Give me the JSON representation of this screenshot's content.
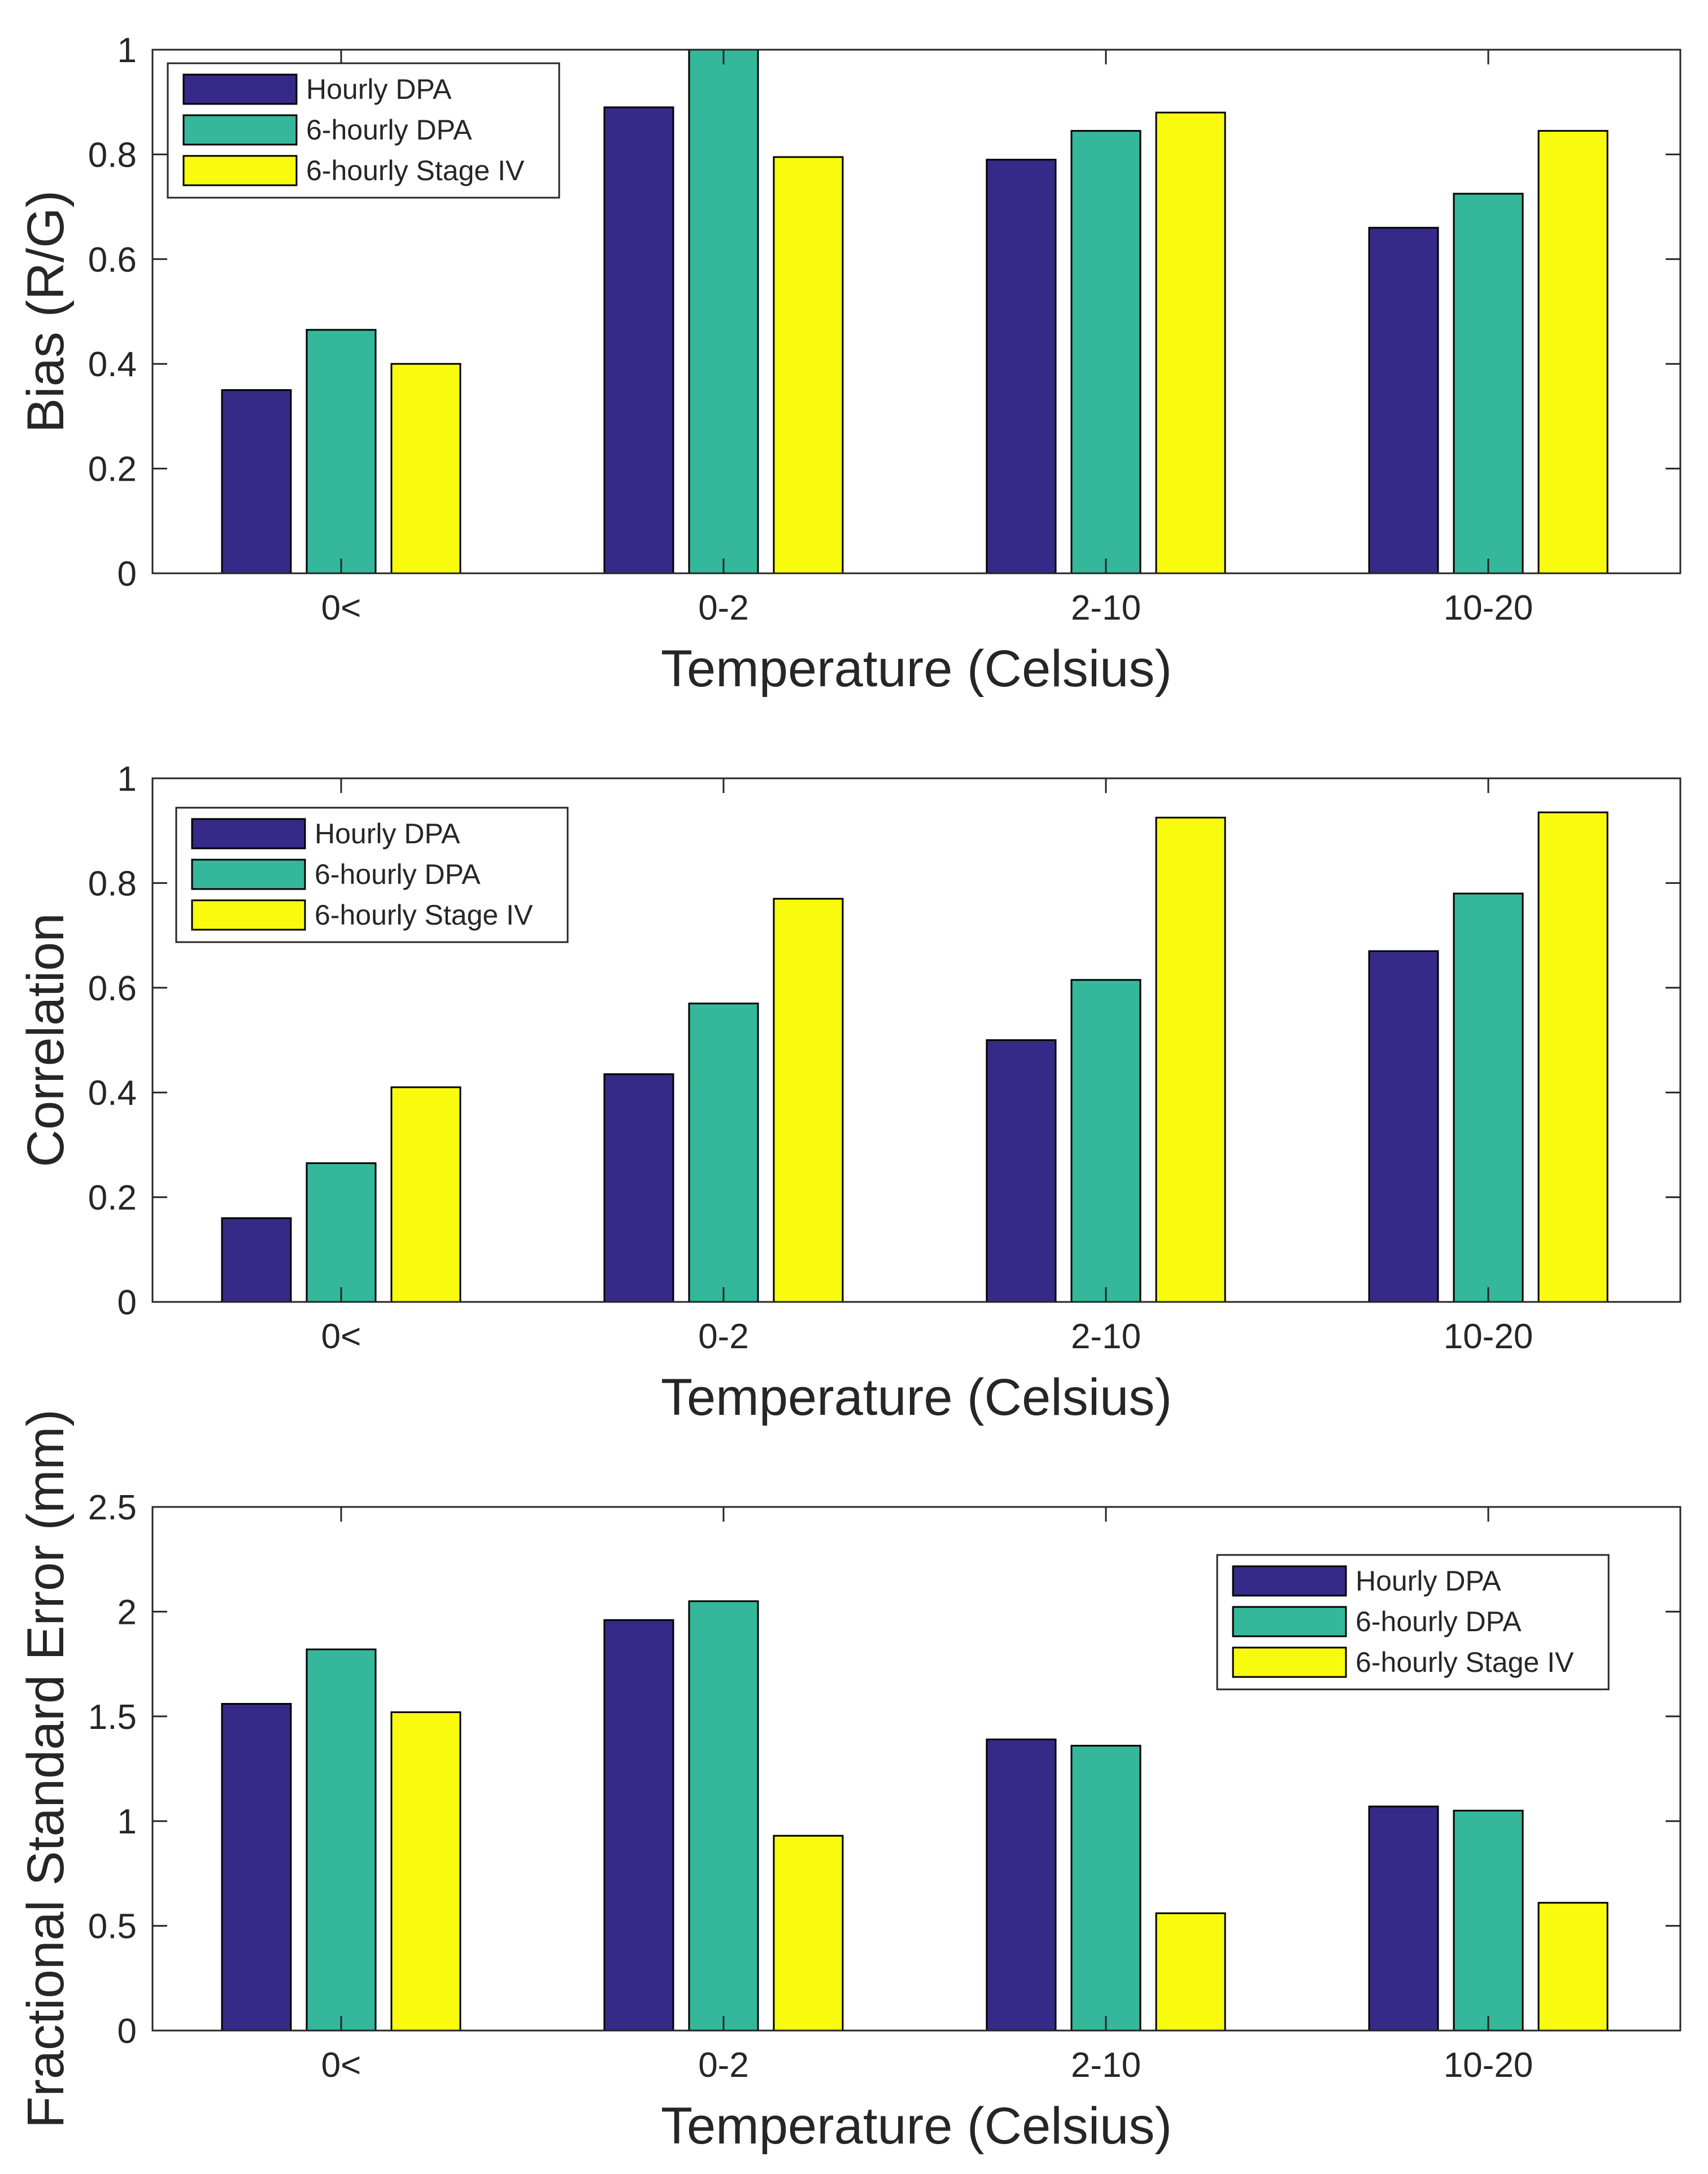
{
  "chart_data": [
    {
      "type": "bar",
      "title": "",
      "xlabel": "Temperature (Celsius)",
      "ylabel": "Bias (R/G)",
      "categories": [
        "0<",
        "0-2",
        "2-10",
        "10-20"
      ],
      "ylim": [
        0,
        1
      ],
      "yticks": [
        "0",
        "0.2",
        "0.4",
        "0.6",
        "0.8",
        "1"
      ],
      "ytick_values": [
        0,
        0.2,
        0.4,
        0.6,
        0.8,
        1
      ],
      "legend_position": "top-left",
      "grid": false,
      "series": [
        {
          "name": "Hourly DPA",
          "color": "#352a87",
          "values": [
            0.35,
            0.89,
            0.79,
            0.66
          ]
        },
        {
          "name": "6-hourly DPA",
          "color": "#35b79b",
          "values": [
            0.465,
            1.0,
            0.845,
            0.725
          ]
        },
        {
          "name": "6-hourly Stage IV",
          "color": "#f9fb0e",
          "values": [
            0.4,
            0.795,
            0.88,
            0.845
          ]
        }
      ]
    },
    {
      "type": "bar",
      "title": "",
      "xlabel": "Temperature (Celsius)",
      "ylabel": "Correlation",
      "categories": [
        "0<",
        "0-2",
        "2-10",
        "10-20"
      ],
      "ylim": [
        0,
        1
      ],
      "yticks": [
        "0",
        "0.2",
        "0.4",
        "0.6",
        "0.8",
        "1"
      ],
      "ytick_values": [
        0,
        0.2,
        0.4,
        0.6,
        0.8,
        1
      ],
      "legend_position": "top-left",
      "grid": false,
      "series": [
        {
          "name": "Hourly DPA",
          "color": "#352a87",
          "values": [
            0.16,
            0.435,
            0.5,
            0.67
          ]
        },
        {
          "name": "6-hourly DPA",
          "color": "#35b79b",
          "values": [
            0.265,
            0.57,
            0.615,
            0.78
          ]
        },
        {
          "name": "6-hourly Stage IV",
          "color": "#f9fb0e",
          "values": [
            0.41,
            0.77,
            0.925,
            0.935
          ]
        }
      ]
    },
    {
      "type": "bar",
      "title": "",
      "xlabel": "Temperature (Celsius)",
      "ylabel": "Fractional Standard Error (mm)",
      "categories": [
        "0<",
        "0-2",
        "2-10",
        "10-20"
      ],
      "ylim": [
        0,
        2.5
      ],
      "yticks": [
        "0",
        "0.5",
        "1",
        "1.5",
        "2",
        "2.5"
      ],
      "ytick_values": [
        0,
        0.5,
        1,
        1.5,
        2,
        2.5
      ],
      "legend_position": "top-right",
      "grid": false,
      "series": [
        {
          "name": "Hourly DPA",
          "color": "#352a87",
          "values": [
            1.56,
            1.96,
            1.39,
            1.07
          ]
        },
        {
          "name": "6-hourly DPA",
          "color": "#35b79b",
          "values": [
            1.82,
            2.05,
            1.36,
            1.05
          ]
        },
        {
          "name": "6-hourly Stage IV",
          "color": "#f9fb0e",
          "values": [
            1.52,
            0.93,
            0.56,
            0.61
          ]
        }
      ]
    }
  ]
}
